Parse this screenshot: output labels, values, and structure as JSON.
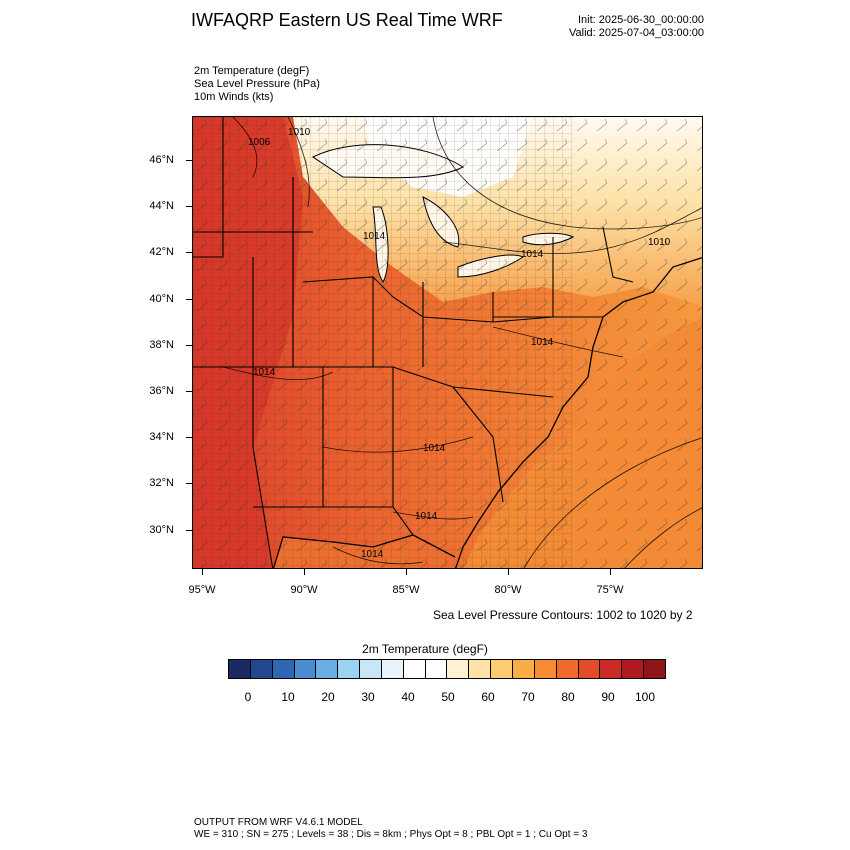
{
  "title": "IWFAQRP Eastern US Real Time WRF",
  "init": "Init: 2025-06-30_00:00:00",
  "valid": "Valid: 2025-07-04_03:00:00",
  "fields": [
    "2m Temperature   (degF)",
    "Sea Level Pressure   (hPa)",
    "10m Winds   (kts)"
  ],
  "map": {
    "lat_labels": [
      "46°N",
      "44°N",
      "42°N",
      "40°N",
      "38°N",
      "36°N",
      "34°N",
      "32°N",
      "30°N"
    ],
    "lon_labels": [
      "95°W",
      "90°W",
      "85°W",
      "80°W",
      "75°W"
    ],
    "pressure_labels": [
      "1006",
      "1010",
      "1014",
      "1014",
      "1010",
      "1014",
      "1014",
      "1014",
      "1014",
      "1014"
    ],
    "land_color": "#e8683c",
    "ocean_color": "#f08a38",
    "cold_north_color": "#fff6e6"
  },
  "contour_note": "Sea Level Pressure Contours: 1002 to 1020 by 2",
  "colorbar": {
    "title": "2m Temperature  (degF)",
    "labels": [
      "0",
      "10",
      "20",
      "30",
      "40",
      "50",
      "60",
      "70",
      "80",
      "90",
      "100"
    ],
    "colors": [
      "#1b2a5e",
      "#23478f",
      "#2f66b3",
      "#4a8ccf",
      "#6aaee3",
      "#9dd3f2",
      "#c7e7f7",
      "#e7f4fb",
      "#ffffff",
      "#ffffff",
      "#fff2d1",
      "#fde3a8",
      "#fdcb70",
      "#f9ad45",
      "#f68b33",
      "#f06a2b",
      "#e34b2b",
      "#cc2a27",
      "#b0191f",
      "#8f1418"
    ]
  },
  "footer": {
    "line1": "OUTPUT FROM WRF V4.6.1 MODEL",
    "line2": "WE = 310 ; SN = 275 ; Levels = 38 ; Dis = 8km ; Phys Opt = 8 ; PBL Opt = 1 ; Cu Opt = 3"
  }
}
